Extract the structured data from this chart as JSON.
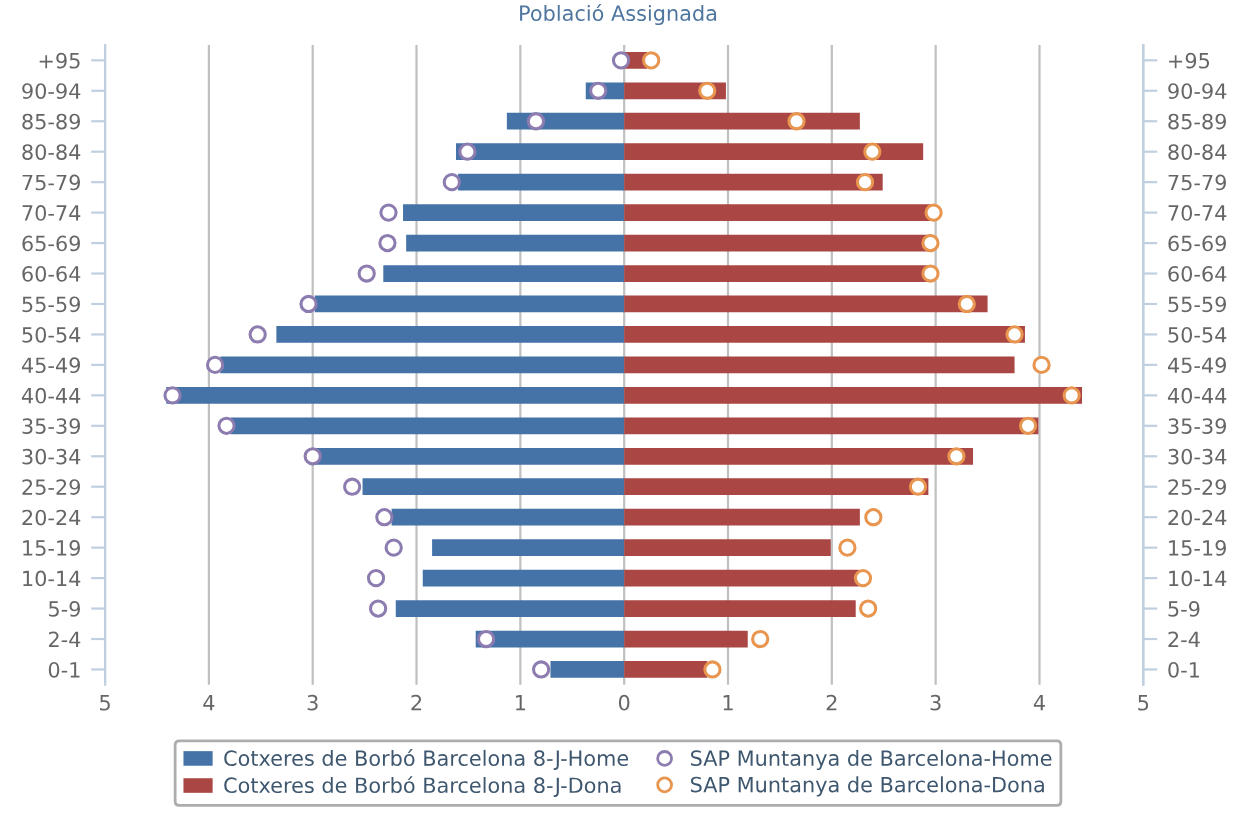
{
  "chart_data": {
    "type": "bar",
    "title": "Població Assignada",
    "orientation": "horizontal",
    "stacked": true,
    "categories": [
      "+95",
      "90-94",
      "85-89",
      "80-84",
      "75-79",
      "70-74",
      "65-69",
      "60-64",
      "55-59",
      "50-54",
      "45-49",
      "40-44",
      "35-39",
      "30-34",
      "25-29",
      "20-24",
      "15-19",
      "10-14",
      "5-9",
      "2-4",
      "0-1"
    ],
    "series": [
      {
        "name": "Cotxeres de Borbó Barcelona 8-J-Home",
        "color": "#4572a7",
        "values": [
          0,
          -0.37,
          -1.13,
          -1.62,
          -1.6,
          -2.13,
          -2.1,
          -2.32,
          -2.98,
          -3.35,
          -3.89,
          -4.41,
          -3.79,
          -3.0,
          -2.52,
          -2.24,
          -1.85,
          -1.94,
          -2.2,
          -1.43,
          -0.71
        ]
      },
      {
        "name": "Cotxeres de Borbó Barcelona 8-J-Dona",
        "color": "#aa4643",
        "values": [
          0.22,
          0.98,
          2.27,
          2.88,
          2.49,
          2.97,
          2.97,
          2.93,
          3.5,
          3.86,
          3.76,
          4.41,
          3.99,
          3.36,
          2.93,
          2.27,
          1.99,
          2.26,
          2.23,
          1.19,
          0.8
        ]
      },
      {
        "name": "SAP Muntanya de Barcelona-Home",
        "type": "scatter",
        "marker": "circle",
        "color": "#8d7cb0",
        "values": [
          -0.03,
          -0.25,
          -0.85,
          -1.51,
          -1.66,
          -2.27,
          -2.28,
          -2.48,
          -3.04,
          -3.53,
          -3.94,
          -4.35,
          -3.83,
          -3.0,
          -2.62,
          -2.31,
          -2.22,
          -2.39,
          -2.37,
          -1.33,
          -0.8
        ]
      },
      {
        "name": "SAP Muntanya de Barcelona-Dona",
        "type": "scatter",
        "marker": "circle",
        "color": "#e8954f",
        "values": [
          0.26,
          0.8,
          1.66,
          2.39,
          2.32,
          2.98,
          2.95,
          2.95,
          3.3,
          3.76,
          4.02,
          4.31,
          3.89,
          3.2,
          2.83,
          2.4,
          2.15,
          2.3,
          2.35,
          1.31,
          0.85
        ]
      }
    ],
    "xlim": [
      -5,
      5
    ],
    "xticks": [
      {
        "value": -5,
        "label": "5"
      },
      {
        "value": -4,
        "label": "4"
      },
      {
        "value": -3,
        "label": "3"
      },
      {
        "value": -2,
        "label": "2"
      },
      {
        "value": -1,
        "label": "1"
      },
      0,
      1,
      2,
      3,
      4,
      5
    ],
    "grid": "x",
    "legend": "bottom"
  }
}
